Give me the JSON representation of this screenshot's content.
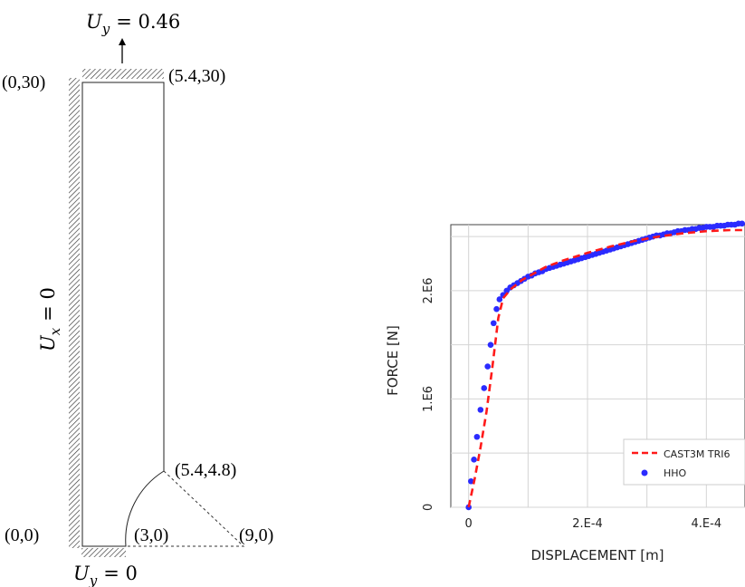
{
  "diagram": {
    "bc_top": {
      "sym": "U",
      "sub": "y",
      "rest": "= 0.46"
    },
    "bc_left": {
      "sym": "U",
      "sub": "x",
      "rest": "= 0"
    },
    "bc_bottom": {
      "sym": "U",
      "sub": "y",
      "rest": "= 0"
    },
    "points": {
      "top_left": "(0,30)",
      "top_right": "(5.4,30)",
      "mid_right": "(5.4,4.8)",
      "bottom_left": "(0,0)",
      "bottom_mid": "(3,0)",
      "bottom_right": "(9,0)"
    }
  },
  "chart_data": {
    "type": "scatter",
    "xlabel": "DISPLACEMENT [m]",
    "ylabel": "FORCE [N]",
    "xlim": [
      -3e-05,
      0.000465
    ],
    "ylim": [
      -0.0005,
      2.61
    ],
    "x_ticks": [
      {
        "value": 0,
        "label": "0"
      },
      {
        "value": 0.0002,
        "label": "2.E-4"
      },
      {
        "value": 0.0004,
        "label": "4.E-4"
      }
    ],
    "y_ticks": [
      {
        "value": 0,
        "label": "0"
      },
      {
        "value": 1,
        "label": "1.E6"
      },
      {
        "value": 2,
        "label": "2.E6"
      }
    ],
    "grid": true,
    "legend_position": "bottom-right",
    "series": [
      {
        "name": "CAST3M TRI6",
        "style": "dashed-line",
        "color": "#ff1a1a",
        "points": [
          [
            0,
            0
          ],
          [
            1e-05,
            0.26
          ],
          [
            2e-05,
            0.55
          ],
          [
            3e-05,
            0.88
          ],
          [
            4e-05,
            1.3
          ],
          [
            5e-05,
            1.75
          ],
          [
            5.8e-05,
            1.93
          ],
          [
            7e-05,
            2.01
          ],
          [
            9e-05,
            2.1
          ],
          [
            0.00011,
            2.16
          ],
          [
            0.00013,
            2.22
          ],
          [
            0.00016,
            2.28
          ],
          [
            0.0002,
            2.35
          ],
          [
            0.00024,
            2.41
          ],
          [
            0.00028,
            2.46
          ],
          [
            0.00032,
            2.5
          ],
          [
            0.00036,
            2.53
          ],
          [
            0.0004,
            2.55
          ],
          [
            0.00044,
            2.56
          ],
          [
            0.000465,
            2.56
          ]
        ]
      },
      {
        "name": "HHO",
        "style": "markers",
        "color": "#2b2bff",
        "points": [
          [
            0,
            0
          ],
          [
            4e-06,
            0.24
          ],
          [
            9e-06,
            0.44
          ],
          [
            1.4e-05,
            0.65
          ],
          [
            2e-05,
            0.9
          ],
          [
            2.6e-05,
            1.1
          ],
          [
            3.2e-05,
            1.3
          ],
          [
            3.7e-05,
            1.5
          ],
          [
            4.2e-05,
            1.7
          ],
          [
            4.7e-05,
            1.83
          ],
          [
            5.2e-05,
            1.92
          ],
          [
            5.8e-05,
            1.96
          ],
          [
            6.4e-05,
            2.0
          ],
          [
            7e-05,
            2.03
          ],
          [
            7.6e-05,
            2.05
          ],
          [
            8.2e-05,
            2.07
          ],
          [
            8.8e-05,
            2.09
          ],
          [
            9.4e-05,
            2.11
          ],
          [
            0.0001,
            2.13
          ],
          [
            0.000106,
            2.14
          ],
          [
            0.000112,
            2.16
          ],
          [
            0.000118,
            2.17
          ],
          [
            0.000124,
            2.18
          ],
          [
            0.00013,
            2.2
          ],
          [
            0.000136,
            2.21
          ],
          [
            0.000142,
            2.22
          ],
          [
            0.000148,
            2.23
          ],
          [
            0.000154,
            2.24
          ],
          [
            0.00016,
            2.25
          ],
          [
            0.000166,
            2.26
          ],
          [
            0.000172,
            2.27
          ],
          [
            0.000178,
            2.28
          ],
          [
            0.000184,
            2.29
          ],
          [
            0.00019,
            2.3
          ],
          [
            0.000196,
            2.31
          ],
          [
            0.000202,
            2.32
          ],
          [
            0.000208,
            2.33
          ],
          [
            0.000214,
            2.34
          ],
          [
            0.00022,
            2.35
          ],
          [
            0.000226,
            2.36
          ],
          [
            0.000232,
            2.37
          ],
          [
            0.000238,
            2.38
          ],
          [
            0.000244,
            2.39
          ],
          [
            0.00025,
            2.4
          ],
          [
            0.000256,
            2.41
          ],
          [
            0.000262,
            2.42
          ],
          [
            0.000268,
            2.43
          ],
          [
            0.000274,
            2.44
          ],
          [
            0.00028,
            2.45
          ],
          [
            0.000286,
            2.46
          ],
          [
            0.000292,
            2.47
          ],
          [
            0.000298,
            2.48
          ],
          [
            0.000304,
            2.49
          ],
          [
            0.00031,
            2.5
          ],
          [
            0.000316,
            2.51
          ],
          [
            0.000322,
            2.51
          ],
          [
            0.000328,
            2.52
          ],
          [
            0.000334,
            2.53
          ],
          [
            0.00034,
            2.53
          ],
          [
            0.000346,
            2.54
          ],
          [
            0.000352,
            2.55
          ],
          [
            0.000358,
            2.55
          ],
          [
            0.000364,
            2.56
          ],
          [
            0.00037,
            2.56
          ],
          [
            0.000376,
            2.57
          ],
          [
            0.000382,
            2.57
          ],
          [
            0.000388,
            2.58
          ],
          [
            0.000394,
            2.58
          ],
          [
            0.0004,
            2.59
          ],
          [
            0.000406,
            2.59
          ],
          [
            0.000412,
            2.59
          ],
          [
            0.000418,
            2.6
          ],
          [
            0.000424,
            2.6
          ],
          [
            0.00043,
            2.6
          ],
          [
            0.000436,
            2.61
          ],
          [
            0.000442,
            2.61
          ],
          [
            0.000448,
            2.61
          ],
          [
            0.000454,
            2.62
          ],
          [
            0.00046,
            2.62
          ]
        ]
      }
    ]
  }
}
